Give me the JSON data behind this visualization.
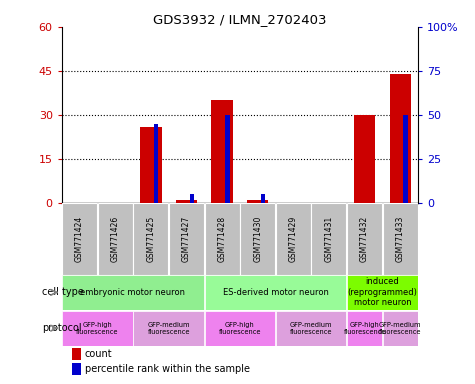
{
  "title": "GDS3932 / ILMN_2702403",
  "samples": [
    "GSM771424",
    "GSM771426",
    "GSM771425",
    "GSM771427",
    "GSM771428",
    "GSM771430",
    "GSM771429",
    "GSM771431",
    "GSM771432",
    "GSM771433"
  ],
  "counts": [
    0,
    0,
    26,
    1,
    35,
    1,
    0,
    0,
    30,
    44
  ],
  "percentiles": [
    0,
    0,
    45,
    5,
    50,
    5,
    0,
    0,
    0,
    50
  ],
  "ylim_left": [
    0,
    60
  ],
  "ylim_right": [
    0,
    100
  ],
  "yticks_left": [
    0,
    15,
    30,
    45,
    60
  ],
  "ytick_labels_right": [
    "0",
    "25",
    "50",
    "75",
    "100%"
  ],
  "yticks_right": [
    0,
    25,
    50,
    75,
    100
  ],
  "cell_type_groups": [
    {
      "label": "embryonic motor neuron",
      "start": 0,
      "end": 3,
      "color": "#90EE90"
    },
    {
      "label": "ES-derived motor neuron",
      "start": 4,
      "end": 7,
      "color": "#98FB98"
    },
    {
      "label": "induced\n(reprogrammed)\nmotor neuron",
      "start": 8,
      "end": 9,
      "color": "#7CFC00"
    }
  ],
  "protocol_groups": [
    {
      "label": "GFP-high\nfluorescence",
      "start": 0,
      "end": 1,
      "color": "#EE82EE"
    },
    {
      "label": "GFP-medium\nfluorescence",
      "start": 2,
      "end": 3,
      "color": "#DDA0DD"
    },
    {
      "label": "GFP-high\nfluorescence",
      "start": 4,
      "end": 5,
      "color": "#EE82EE"
    },
    {
      "label": "GFP-medium\nfluorescence",
      "start": 6,
      "end": 7,
      "color": "#DDA0DD"
    },
    {
      "label": "GFP-high\nfluorescence",
      "start": 8,
      "end": 8,
      "color": "#EE82EE"
    },
    {
      "label": "GFP-medium\nfluorescence",
      "start": 9,
      "end": 9,
      "color": "#DDA0DD"
    }
  ],
  "bar_color": "#CC0000",
  "percentile_color": "#0000CC",
  "bg_color": "#FFFFFF",
  "tick_color_left": "#CC0000",
  "tick_color_right": "#0000CC",
  "grid_color": "#000000",
  "sample_bg_color": "#C0C0C0",
  "bar_width": 0.6,
  "pct_bar_width": 0.12
}
